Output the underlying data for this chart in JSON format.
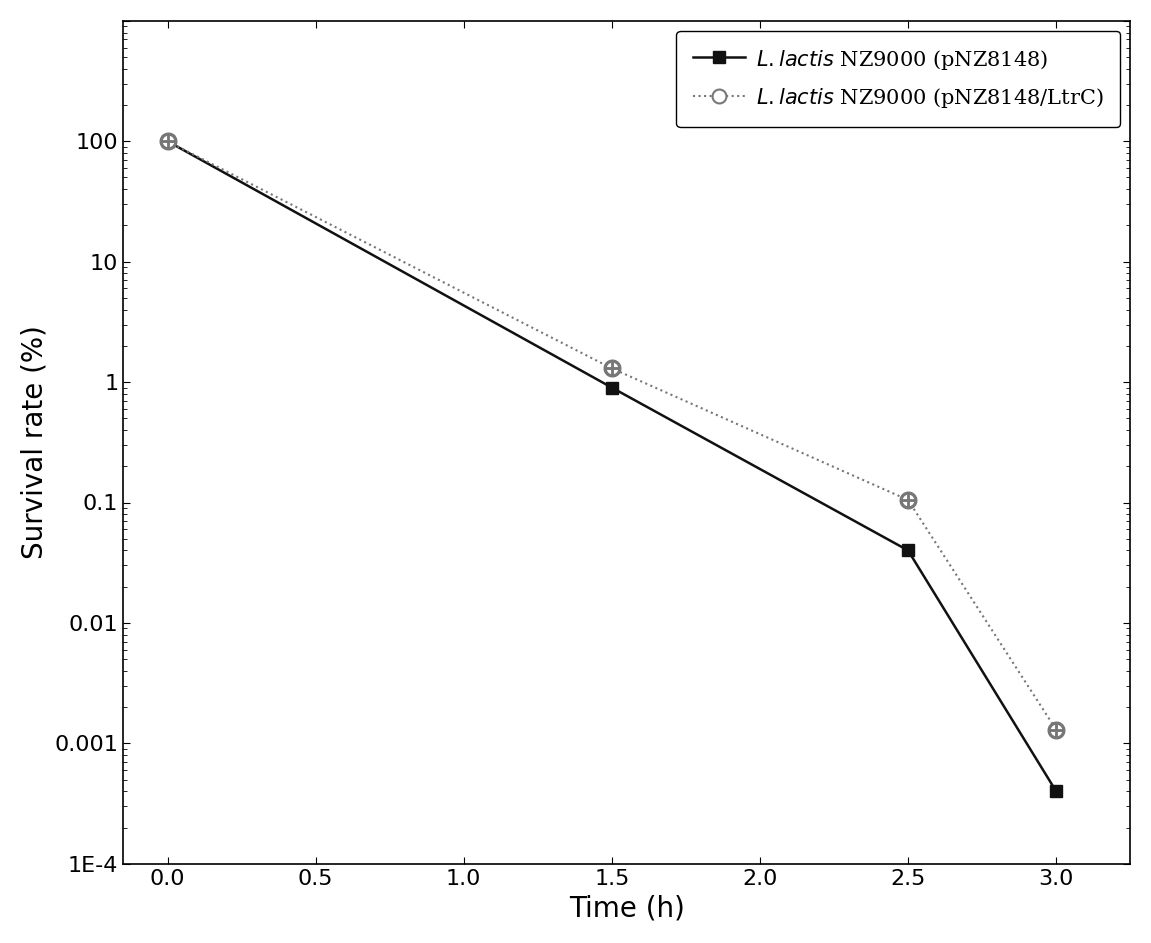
{
  "series1": {
    "x": [
      0,
      1.5,
      2.5,
      3.0
    ],
    "y": [
      100,
      0.9,
      0.04,
      0.0004
    ],
    "yerr": [
      0.0,
      0.05,
      0.003,
      3e-05
    ],
    "color": "#111111",
    "linestyle": "solid",
    "marker": "s",
    "markersize": 8,
    "linewidth": 1.8,
    "label": "$\\it{L.lactis}$ NZ9000 (pNZ8148)"
  },
  "series2": {
    "x": [
      0,
      1.5,
      2.5,
      3.0
    ],
    "y": [
      100,
      1.3,
      0.105,
      0.0013
    ],
    "yerr": [
      0.0,
      0.07,
      0.004,
      8e-05
    ],
    "color": "#777777",
    "linestyle": "dotted",
    "marker": "o",
    "markersize": 10,
    "linewidth": 1.5,
    "label": "$\\it{L.lactis}$ NZ9000 (pNZ8148/LtrC)"
  },
  "xlabel": "Time (h)",
  "ylabel": "Survival rate (%)",
  "xlim": [
    -0.15,
    3.25
  ],
  "ylim": [
    0.0001,
    1000
  ],
  "xticks": [
    0.0,
    0.5,
    1.0,
    1.5,
    2.0,
    2.5,
    3.0
  ],
  "ytick_labels": {
    "1e-4": "1E-4",
    "1e-3": "0.001",
    "1e-2": "0.01",
    "1e-1": "0.1",
    "1e0": "1",
    "1e1": "10",
    "1e2": "100"
  },
  "xlabel_fontsize": 20,
  "ylabel_fontsize": 20,
  "tick_fontsize": 16,
  "legend_fontsize": 15,
  "figure_facecolor": "#ffffff",
  "axes_facecolor": "#ffffff"
}
